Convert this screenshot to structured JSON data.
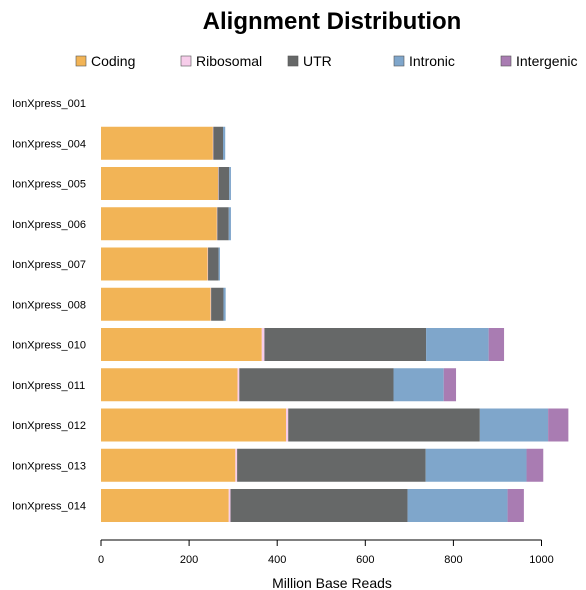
{
  "chart_data": {
    "type": "bar",
    "orientation": "horizontal",
    "stacked": true,
    "title": "Alignment Distribution",
    "xlabel": "Million Base Reads",
    "ylabel": "",
    "xlim": [
      0,
      1060
    ],
    "xticks": [
      0,
      200,
      400,
      600,
      800,
      1000
    ],
    "grid": false,
    "legend_position": "top",
    "categories": [
      "IonXpress_001",
      "IonXpress_004",
      "IonXpress_005",
      "IonXpress_006",
      "IonXpress_007",
      "IonXpress_008",
      "IonXpress_010",
      "IonXpress_011",
      "IonXpress_012",
      "IonXpress_013",
      "IonXpress_014"
    ],
    "series": [
      {
        "name": "Coding",
        "color": "#F2B456",
        "values": [
          0,
          254,
          266,
          263,
          242,
          249,
          365,
          310,
          420,
          305,
          290
        ]
      },
      {
        "name": "Ribosomal",
        "color": "#F7CDEA",
        "values": [
          0,
          1,
          1,
          1,
          1,
          1,
          6,
          4,
          5,
          4,
          4
        ]
      },
      {
        "name": "UTR",
        "color": "#666868",
        "values": [
          0,
          22,
          24,
          26,
          24,
          28,
          367,
          350,
          435,
          428,
          402
        ]
      },
      {
        "name": "Intronic",
        "color": "#7FA6CB",
        "values": [
          0,
          5,
          4,
          5,
          3,
          5,
          142,
          114,
          155,
          229,
          227
        ]
      },
      {
        "name": "Intergenic",
        "color": "#A97CB2",
        "values": [
          0,
          0,
          0,
          0,
          0,
          0,
          35,
          28,
          46,
          38,
          37
        ]
      }
    ]
  }
}
